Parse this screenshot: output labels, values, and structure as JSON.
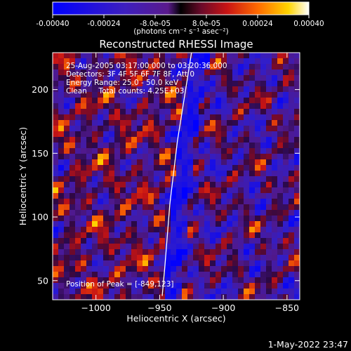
{
  "colorbar": {
    "tick_labels": [
      "-0.00040",
      "-0.00024",
      "-8.0e-05",
      "8.0e-05",
      "0.00024",
      "0.00040"
    ],
    "tick_values": [
      -0.0004,
      -0.00024,
      -8e-05,
      8e-05,
      0.00024,
      0.0004
    ],
    "range": [
      -0.0004,
      0.0004
    ],
    "units_text": "(photons cm⁻² s⁻¹ asec⁻²)"
  },
  "chart_data": {
    "type": "heatmap",
    "title": "Reconstructed RHESSI Image",
    "xlabel": "Heliocentric X (arcsec)",
    "ylabel": "Heliocentric Y (arcsec)",
    "xlim": [
      -1034,
      -840
    ],
    "ylim": [
      35,
      229
    ],
    "x_ticks": [
      -1000,
      -950,
      -900,
      -850
    ],
    "x_tick_labels": [
      "−1000",
      "−950",
      "−900",
      "−850"
    ],
    "y_ticks": [
      50,
      100,
      150,
      200
    ],
    "y_tick_labels": [
      "50",
      "100",
      "150",
      "200"
    ],
    "grid": false,
    "colormap": "blue-purple-red-orange-yellow-white",
    "limb_arc": [
      {
        "x": -948,
        "y": 38
      },
      {
        "x": -946,
        "y": 60
      },
      {
        "x": -944,
        "y": 85
      },
      {
        "x": -942,
        "y": 110
      },
      {
        "x": -939,
        "y": 135
      },
      {
        "x": -936,
        "y": 160
      },
      {
        "x": -932,
        "y": 185
      },
      {
        "x": -928,
        "y": 210
      },
      {
        "x": -925,
        "y": 229
      }
    ],
    "annotations": [
      "25-Aug-2005 03:17:00.000 to 03:20:36.000",
      "Detectors: 3F 4F 5F 6F 7F 8F, Att 0",
      "Energy Range: 25.0 - 50.0 keV",
      "Clean     Total counts: 4.25E+03"
    ],
    "peak_label": "Position of Peak = [-849,123]"
  },
  "footer": {
    "timestamp": "1-May-2022 23:47"
  }
}
